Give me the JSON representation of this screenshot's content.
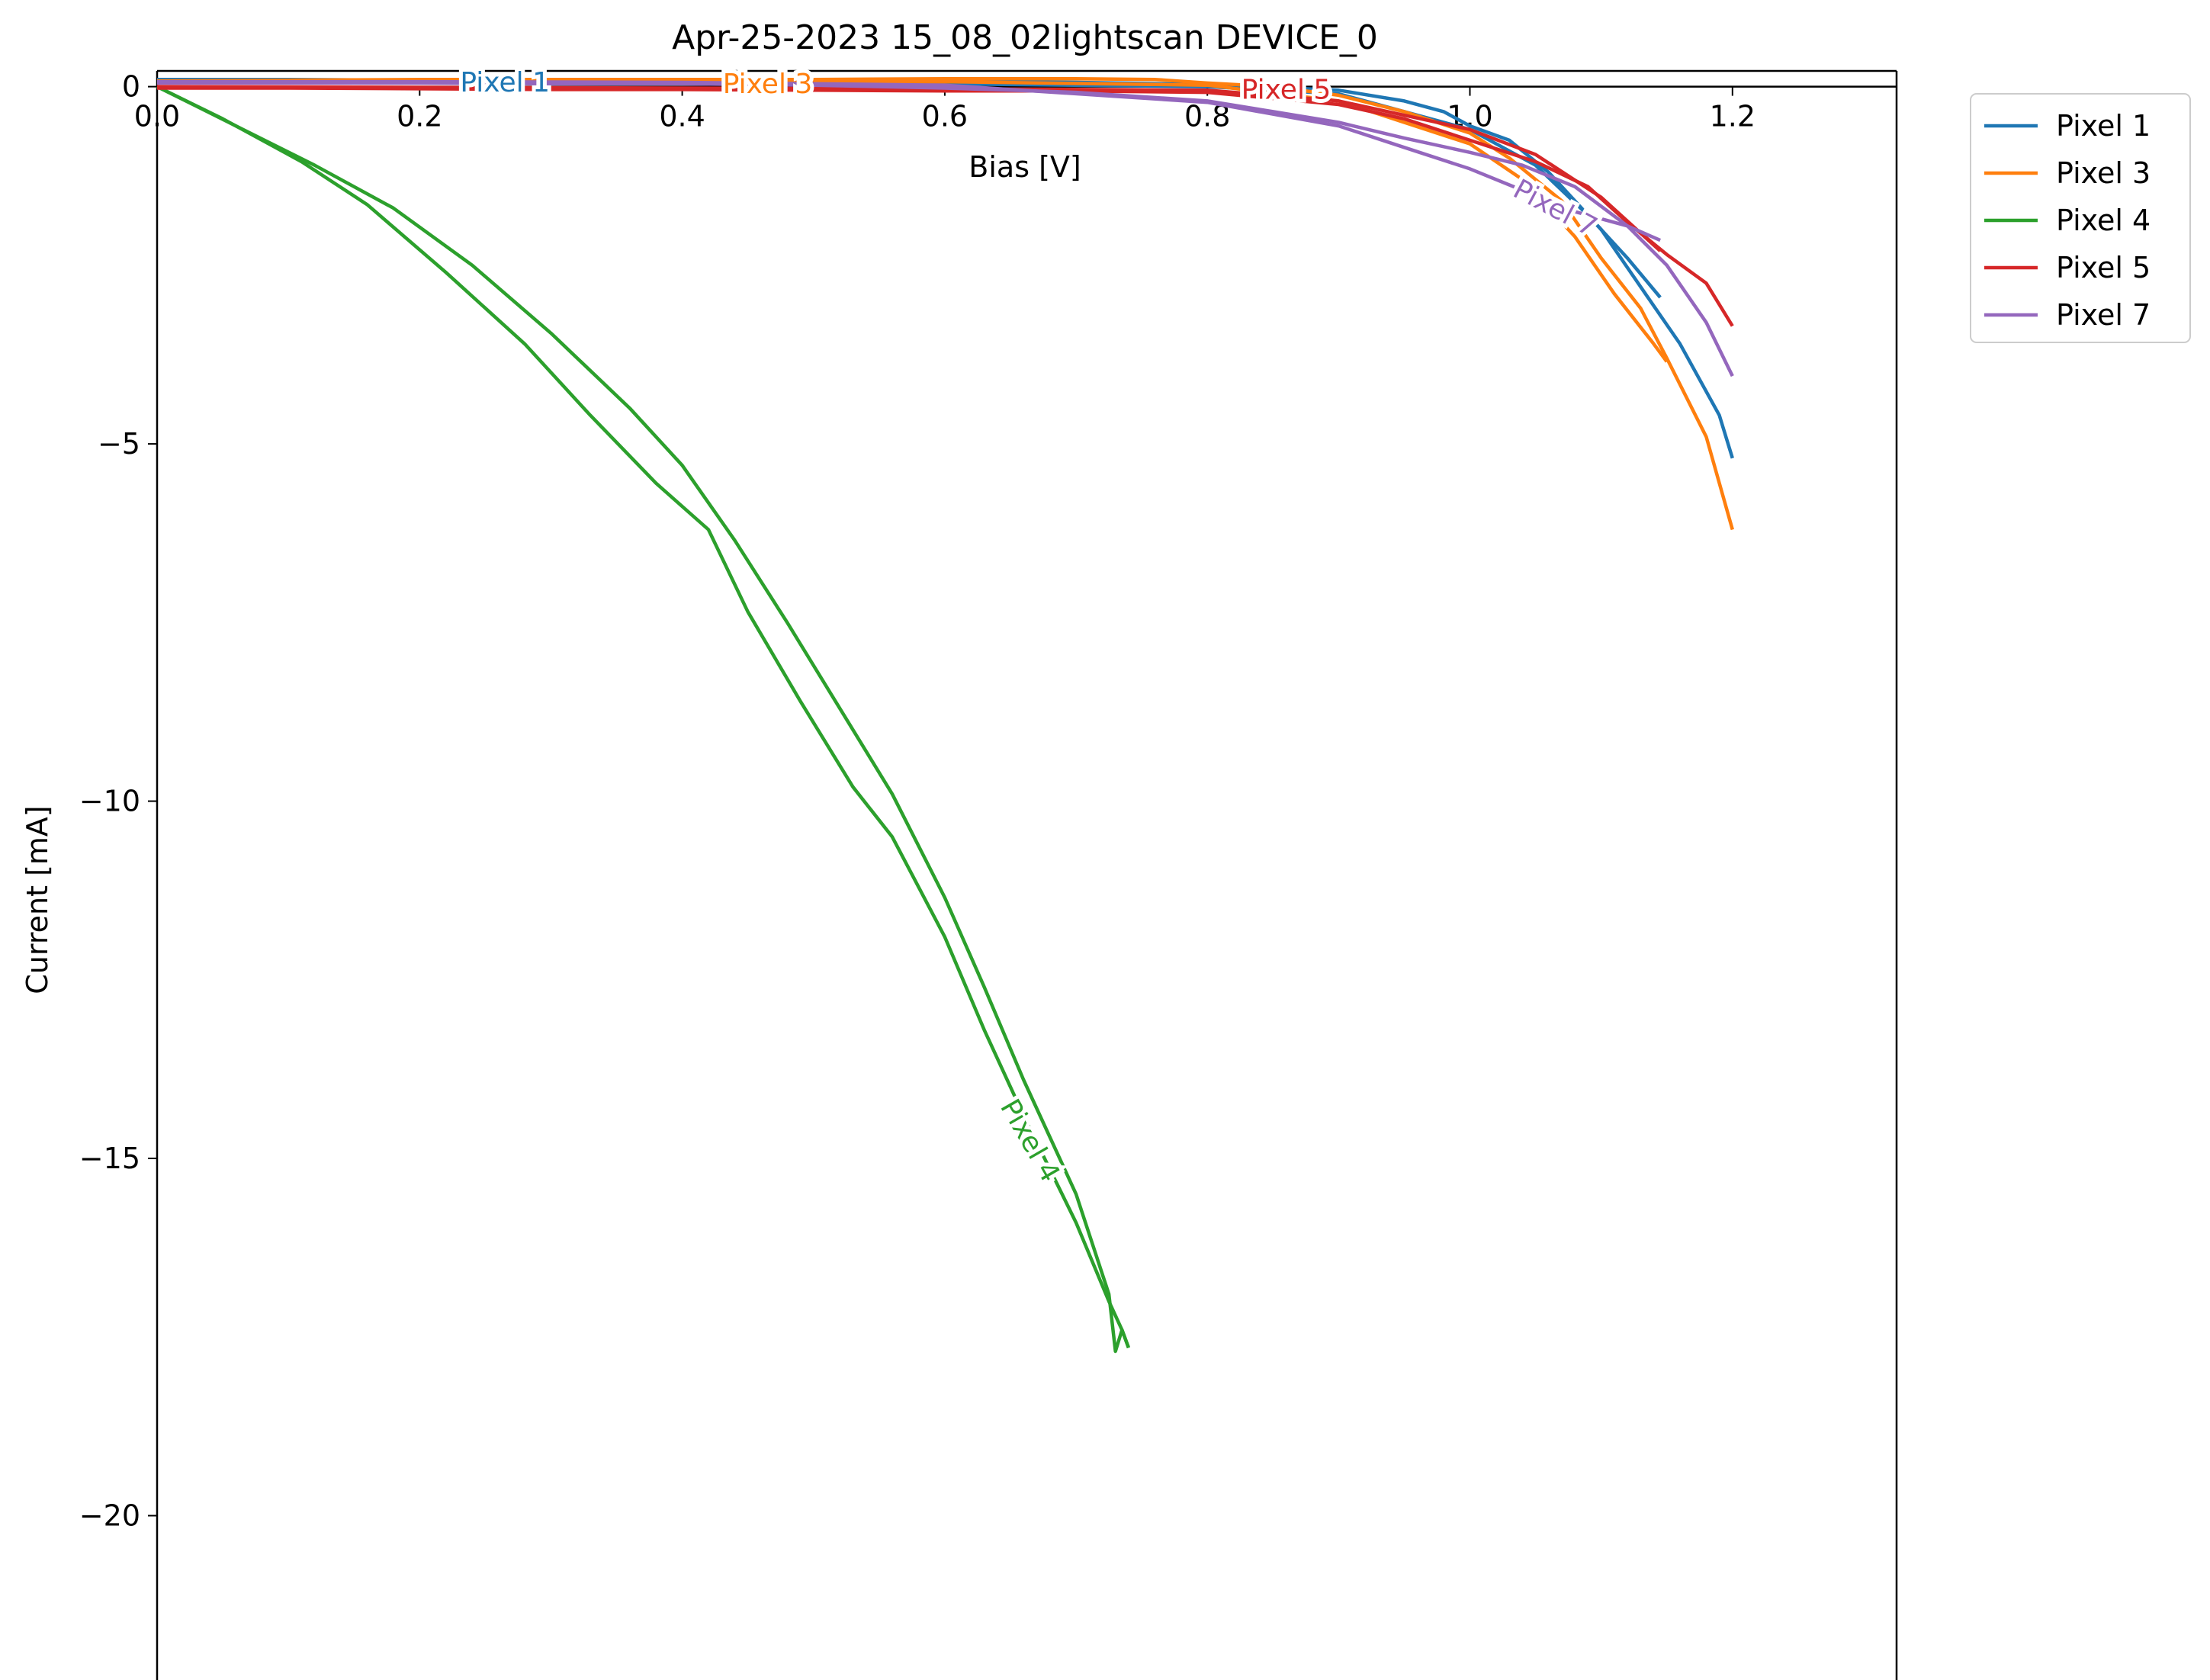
{
  "chart_data": {
    "type": "line",
    "title": "Apr-25-2023 15_08_02lightscan DEVICE_0",
    "xlabel": "Bias [V]",
    "ylabel": "Current [mA]",
    "xlim": [
      0.0,
      1.325
    ],
    "ylim": [
      -22.3,
      0.22
    ],
    "xticks": [
      0.0,
      0.2,
      0.4,
      0.6,
      0.8,
      1.0,
      1.2
    ],
    "xtick_labels": [
      "0.0",
      "0.2",
      "0.4",
      "0.6",
      "0.8",
      "1.0",
      "1.2"
    ],
    "yticks": [
      0,
      -5,
      -10,
      -15,
      -20
    ],
    "ytick_labels": [
      "0",
      "−5",
      "−10",
      "−15",
      "−20"
    ],
    "x_axis_position": "top, at y = 0",
    "legend_position": "outside top-right",
    "grid": false,
    "series": [
      {
        "name": "Pixel 1",
        "color": "#1f77b4",
        "inline_label": "Pixel 1",
        "label_at": [
          0.265,
          0.06
        ],
        "label_angle": 0,
        "segments": [
          [
            [
              0.0,
              0.1
            ],
            [
              0.1,
              0.1
            ],
            [
              0.2,
              0.09
            ],
            [
              0.3,
              0.1
            ],
            [
              0.4,
              0.08
            ],
            [
              0.5,
              0.08
            ],
            [
              0.6,
              0.07
            ],
            [
              0.7,
              0.06
            ],
            [
              0.8,
              0.03
            ],
            [
              0.9,
              -0.05
            ],
            [
              0.95,
              -0.2
            ],
            [
              0.98,
              -0.35
            ],
            [
              1.0,
              -0.55
            ],
            [
              1.03,
              -0.75
            ],
            [
              1.06,
              -1.2
            ],
            [
              1.1,
              -2.0
            ],
            [
              1.13,
              -2.8
            ],
            [
              1.16,
              -3.6
            ],
            [
              1.19,
              -4.6
            ],
            [
              1.2,
              -5.2
            ]
          ],
          [
            [
              0.0,
              0.06
            ],
            [
              0.2,
              0.06
            ],
            [
              0.4,
              0.05
            ],
            [
              0.6,
              0.04
            ],
            [
              0.8,
              0.0
            ],
            [
              0.9,
              -0.1
            ],
            [
              1.0,
              -0.6
            ],
            [
              1.05,
              -1.1
            ],
            [
              1.09,
              -1.8
            ],
            [
              1.12,
              -2.4
            ],
            [
              1.145,
              -2.95
            ]
          ]
        ]
      },
      {
        "name": "Pixel 3",
        "color": "#ff7f0e",
        "inline_label": "Pixel 3",
        "label_at": [
          0.465,
          0.04
        ],
        "label_angle": 0,
        "segments": [
          [
            [
              0.0,
              0.08
            ],
            [
              0.1,
              0.09
            ],
            [
              0.2,
              0.1
            ],
            [
              0.3,
              0.1
            ],
            [
              0.4,
              0.1
            ],
            [
              0.5,
              0.1
            ],
            [
              0.6,
              0.11
            ],
            [
              0.7,
              0.11
            ],
            [
              0.76,
              0.1
            ],
            [
              0.8,
              0.05
            ],
            [
              0.85,
              0.0
            ],
            [
              0.9,
              -0.12
            ],
            [
              0.95,
              -0.35
            ],
            [
              1.0,
              -0.65
            ],
            [
              1.03,
              -1.0
            ],
            [
              1.07,
              -1.6
            ],
            [
              1.1,
              -2.4
            ],
            [
              1.13,
              -3.1
            ],
            [
              1.15,
              -3.8
            ],
            [
              1.18,
              -4.9
            ],
            [
              1.2,
              -6.2
            ]
          ],
          [
            [
              0.0,
              0.05
            ],
            [
              0.2,
              0.06
            ],
            [
              0.4,
              0.06
            ],
            [
              0.6,
              0.07
            ],
            [
              0.8,
              0.02
            ],
            [
              0.9,
              -0.2
            ],
            [
              1.0,
              -0.8
            ],
            [
              1.04,
              -1.3
            ],
            [
              1.08,
              -2.1
            ],
            [
              1.11,
              -2.9
            ],
            [
              1.14,
              -3.6
            ],
            [
              1.15,
              -3.85
            ]
          ]
        ]
      },
      {
        "name": "Pixel 4",
        "color": "#2ca02c",
        "inline_label": "Pixel 4",
        "label_at": [
          0.665,
          -14.75
        ],
        "label_angle": 60,
        "segments": [
          [
            [
              0.0,
              0.0
            ],
            [
              0.06,
              -0.55
            ],
            [
              0.12,
              -1.1
            ],
            [
              0.18,
              -1.7
            ],
            [
              0.24,
              -2.5
            ],
            [
              0.3,
              -3.45
            ],
            [
              0.36,
              -4.5
            ],
            [
              0.4,
              -5.3
            ],
            [
              0.44,
              -6.35
            ],
            [
              0.48,
              -7.5
            ],
            [
              0.52,
              -8.7
            ],
            [
              0.56,
              -9.9
            ],
            [
              0.6,
              -11.35
            ],
            [
              0.63,
              -12.6
            ],
            [
              0.66,
              -13.9
            ],
            [
              0.7,
              -15.5
            ],
            [
              0.725,
              -16.9
            ],
            [
              0.73,
              -17.7
            ],
            [
              0.735,
              -17.4
            ],
            [
              0.74,
              -17.65
            ]
          ],
          [
            [
              0.74,
              -17.65
            ],
            [
              0.735,
              -17.4
            ],
            [
              0.725,
              -17.0
            ],
            [
              0.7,
              -15.9
            ],
            [
              0.66,
              -14.4
            ],
            [
              0.63,
              -13.2
            ],
            [
              0.6,
              -11.9
            ],
            [
              0.56,
              -10.5
            ],
            [
              0.53,
              -9.8
            ],
            [
              0.49,
              -8.6
            ],
            [
              0.45,
              -7.35
            ],
            [
              0.42,
              -6.2
            ],
            [
              0.38,
              -5.55
            ],
            [
              0.33,
              -4.6
            ],
            [
              0.28,
              -3.6
            ],
            [
              0.22,
              -2.6
            ],
            [
              0.16,
              -1.65
            ],
            [
              0.11,
              -1.05
            ],
            [
              0.05,
              -0.45
            ],
            [
              0.0,
              0.0
            ]
          ]
        ]
      },
      {
        "name": "Pixel 5",
        "color": "#d62728",
        "inline_label": "Pixel 5",
        "label_at": [
          0.86,
          -0.04
        ],
        "label_angle": 0,
        "segments": [
          [
            [
              0.0,
              -0.02
            ],
            [
              0.1,
              -0.02
            ],
            [
              0.2,
              -0.03
            ],
            [
              0.3,
              -0.04
            ],
            [
              0.4,
              -0.04
            ],
            [
              0.5,
              -0.05
            ],
            [
              0.6,
              -0.06
            ],
            [
              0.7,
              -0.06
            ],
            [
              0.8,
              -0.08
            ],
            [
              0.9,
              -0.25
            ],
            [
              0.95,
              -0.45
            ],
            [
              1.0,
              -0.75
            ],
            [
              1.05,
              -1.05
            ],
            [
              1.09,
              -1.4
            ],
            [
              1.12,
              -1.9
            ],
            [
              1.15,
              -2.35
            ],
            [
              1.18,
              -2.75
            ],
            [
              1.2,
              -3.35
            ]
          ],
          [
            [
              0.0,
              0.0
            ],
            [
              0.2,
              -0.01
            ],
            [
              0.4,
              -0.02
            ],
            [
              0.6,
              -0.03
            ],
            [
              0.8,
              -0.05
            ],
            [
              0.9,
              -0.2
            ],
            [
              1.0,
              -0.6
            ],
            [
              1.05,
              -0.95
            ],
            [
              1.1,
              -1.55
            ],
            [
              1.145,
              -2.3
            ]
          ]
        ]
      },
      {
        "name": "Pixel 7",
        "color": "#9467bd",
        "inline_label": "Pixel 7",
        "label_at": [
          1.065,
          -1.7
        ],
        "label_angle": 28,
        "segments": [
          [
            [
              0.0,
              0.05
            ],
            [
              0.1,
              0.05
            ],
            [
              0.2,
              0.05
            ],
            [
              0.3,
              0.04
            ],
            [
              0.4,
              0.04
            ],
            [
              0.5,
              0.02
            ],
            [
              0.6,
              -0.02
            ],
            [
              0.7,
              -0.08
            ],
            [
              0.8,
              -0.2
            ],
            [
              0.85,
              -0.35
            ],
            [
              0.9,
              -0.5
            ],
            [
              0.95,
              -0.72
            ],
            [
              1.0,
              -0.92
            ],
            [
              1.04,
              -1.1
            ],
            [
              1.08,
              -1.4
            ],
            [
              1.12,
              -1.95
            ],
            [
              1.15,
              -2.5
            ],
            [
              1.18,
              -3.3
            ],
            [
              1.2,
              -4.05
            ]
          ],
          [
            [
              0.0,
              0.07
            ],
            [
              0.2,
              0.07
            ],
            [
              0.4,
              0.06
            ],
            [
              0.6,
              0.02
            ],
            [
              0.8,
              -0.22
            ],
            [
              0.9,
              -0.55
            ],
            [
              0.95,
              -0.85
            ],
            [
              1.0,
              -1.15
            ],
            [
              1.04,
              -1.45
            ],
            [
              1.08,
              -1.75
            ],
            [
              1.12,
              -1.95
            ],
            [
              1.145,
              -2.15
            ]
          ]
        ]
      }
    ]
  }
}
